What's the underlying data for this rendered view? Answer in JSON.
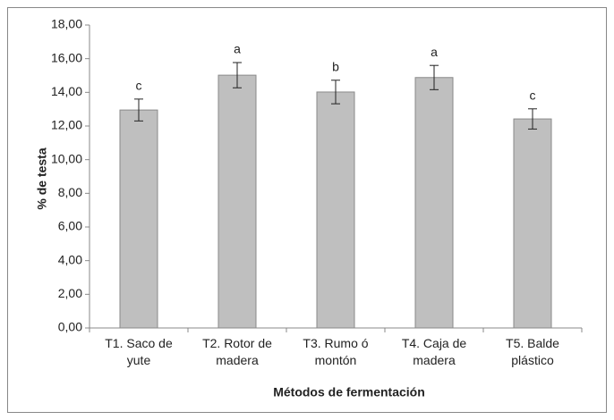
{
  "chart_data": {
    "type": "bar",
    "xlabel": "Métodos de fermentación",
    "ylabel": "% de testa",
    "categories": [
      "T1. Saco de yute",
      "T2. Rotor de madera",
      "T3. Rumo ó montón",
      "T4. Caja de madera",
      "T5. Balde plástico"
    ],
    "values": [
      12.95,
      15.02,
      14.02,
      14.88,
      12.42
    ],
    "errors": [
      0.65,
      0.75,
      0.7,
      0.72,
      0.6
    ],
    "annotations": [
      "c",
      "a",
      "b",
      "a",
      "c"
    ],
    "color": "#bfbfbf",
    "ylim": [
      0,
      18
    ],
    "yticks": [
      {
        "value": 0,
        "label": "0,00"
      },
      {
        "value": 2,
        "label": "2,00"
      },
      {
        "value": 4,
        "label": "4,00"
      },
      {
        "value": 6,
        "label": "6,00"
      },
      {
        "value": 8,
        "label": "8,00"
      },
      {
        "value": 10,
        "label": "10,00"
      },
      {
        "value": 12,
        "label": "12,00"
      },
      {
        "value": 14,
        "label": "14,00"
      },
      {
        "value": 16,
        "label": "16,00"
      },
      {
        "value": 18,
        "label": "18,00"
      }
    ],
    "grid": false
  }
}
